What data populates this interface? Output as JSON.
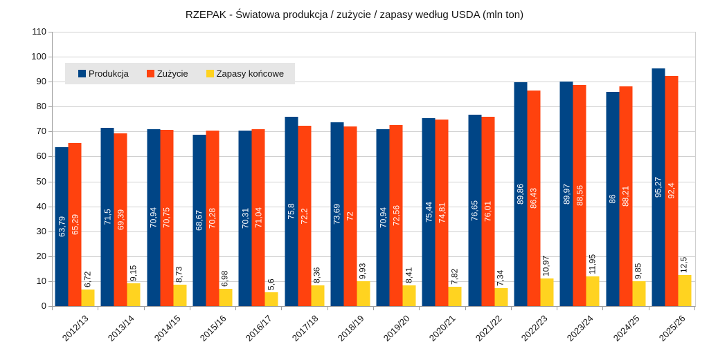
{
  "title": "RZEPAK - Światowa produkcja / zużycie / zapasy według USDA (mln ton)",
  "colors": {
    "background": "#FFFFFF",
    "axis": "#9E9E9E",
    "gridline": "#D0D0D0",
    "legend_background": "#E6E6E6",
    "produkcja": "#004586",
    "zuzycie": "#FF420E",
    "zapasy": "#FFD320"
  },
  "chart_data": {
    "type": "bar",
    "title": "RZEPAK - Światowa produkcja / zużycie / zapasy według USDA (mln ton)",
    "xlabel": "",
    "ylabel": "",
    "ylim": [
      0,
      110
    ],
    "ytick_step": 10,
    "grid": "horizontal",
    "legend_position": "top-left-inside",
    "decimal_separator": ",",
    "categories": [
      "2012/13",
      "2013/14",
      "2014/15",
      "2015/16",
      "2016/17",
      "2017/18",
      "2018/19",
      "2019/20",
      "2020/21",
      "2021/22",
      "2022/23",
      "2023/24",
      "2024/25",
      "2025/26"
    ],
    "series": [
      {
        "name": "Produkcja",
        "color": "#004586",
        "label_color": "#FFFFFF",
        "label_placement": "center",
        "values": [
          63.79,
          71.5,
          70.94,
          68.67,
          70.31,
          75.8,
          73.69,
          70.94,
          75.44,
          76.65,
          89.86,
          89.97,
          86,
          95.27
        ],
        "labels": [
          "63,79",
          "71,5",
          "70,94",
          "68,67",
          "70,31",
          "75,8",
          "73,69",
          "70,94",
          "75,44",
          "76,65",
          "89,86",
          "89,97",
          "86",
          "95,27"
        ]
      },
      {
        "name": "Zużycie",
        "color": "#FF420E",
        "label_color": "#FFFFFF",
        "label_placement": "center",
        "values": [
          65.29,
          69.39,
          70.75,
          70.28,
          71.04,
          72.2,
          72,
          72.56,
          74.81,
          76.01,
          86.43,
          88.56,
          88.21,
          92.4
        ],
        "labels": [
          "65,29",
          "69,39",
          "70,75",
          "70,28",
          "71,04",
          "72,2",
          "72",
          "72,56",
          "74,81",
          "76,01",
          "86,43",
          "88,56",
          "88,21",
          "92,4"
        ]
      },
      {
        "name": "Zapasy końcowe",
        "color": "#FFD320",
        "label_color": "#141414",
        "label_placement": "outside-end",
        "values": [
          6.72,
          9.15,
          8.73,
          6.98,
          5.6,
          8.36,
          9.93,
          8.41,
          7.82,
          7.34,
          10.97,
          11.95,
          9.85,
          12.5
        ],
        "labels": [
          "6,72",
          "9,15",
          "8,73",
          "6,98",
          "5,6",
          "8,36",
          "9,93",
          "8,41",
          "7,82",
          "7,34",
          "10,97",
          "11,95",
          "9,85",
          "12,5"
        ]
      }
    ]
  }
}
